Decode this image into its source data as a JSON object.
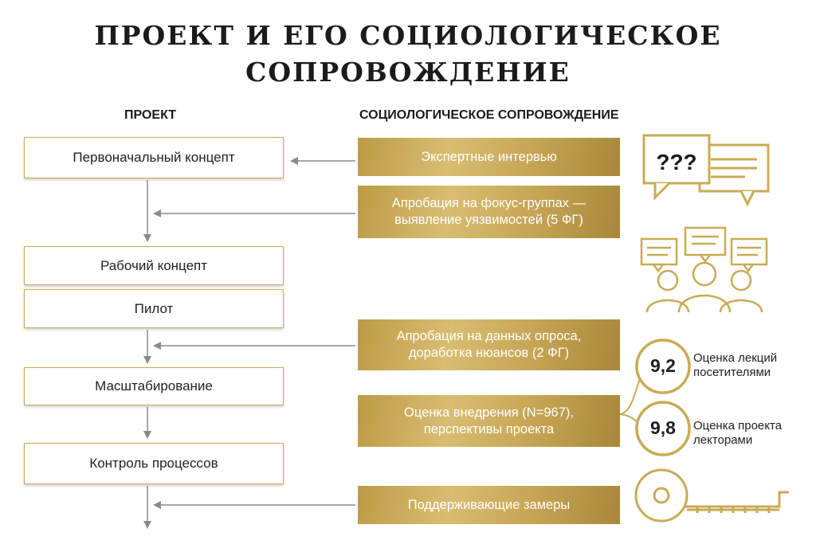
{
  "title": {
    "line1": "ПРОЕКТ И ЕГО СОЦИОЛОГИЧЕСКОЕ",
    "line2": "СОПРОВОЖДЕНИЕ"
  },
  "headers": {
    "project": "ПРОЕКТ",
    "sociology": "СОЦИОЛОГИЧЕСКОЕ СОПРОВОЖДЕНИЕ"
  },
  "project_steps": [
    "Первоначальный концепт",
    "Рабочий концепт",
    "Пилот",
    "Масштабирование",
    "Контроль процессов"
  ],
  "sociology_steps": [
    "Экспертные интервью",
    "Апробация на фокус-группах —\nвыявление уязвимостей (5 ФГ)",
    "Апробация на данных опроса,\nдоработка нюансов (2 ФГ)",
    "Оценка внедрения (N=967),\nперспективы проекта",
    "Поддерживающие замеры"
  ],
  "scores": [
    {
      "value": "9,2",
      "label": "Оценка лекций\nпосетителями"
    },
    {
      "value": "9,8",
      "label": "Оценка проекта\nлекторами"
    }
  ],
  "icons": {
    "question_bubble": "???",
    "names": [
      "speech-bubbles-icon",
      "focus-group-icon",
      "tape-measure-icon"
    ]
  },
  "colors": {
    "gold": "#c9ab55",
    "gold_dark": "#a9873a",
    "arrow": "#8a8a8a",
    "text": "#1b1b1b"
  }
}
